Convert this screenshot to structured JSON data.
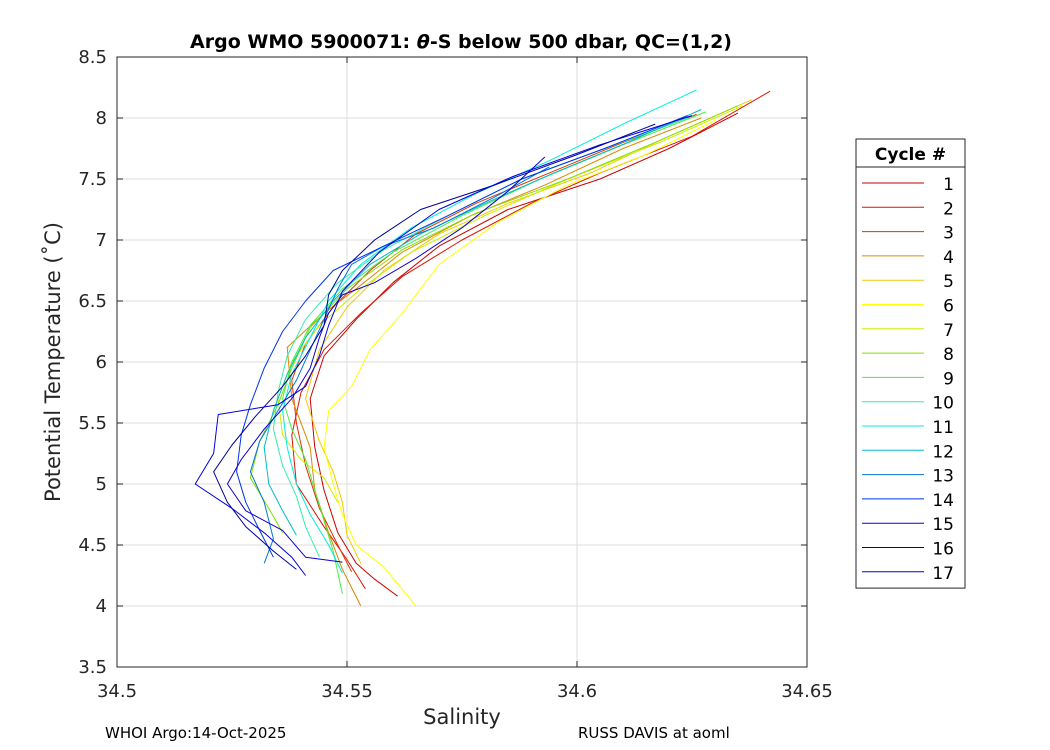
{
  "chart_data": {
    "type": "line",
    "title_parts": [
      "Argo WMO 5900071: ",
      "θ",
      "-S below 500 dbar,  QC=(1,2)"
    ],
    "xlabel": "Salinity",
    "ylabel": "Potential Temperature (˚C)",
    "xlim": [
      34.5,
      34.65
    ],
    "ylim": [
      3.5,
      8.5
    ],
    "xticks": [
      34.5,
      34.55,
      34.6,
      34.65
    ],
    "xtick_labels": [
      "34.5",
      "34.55",
      "34.6",
      "34.65"
    ],
    "yticks": [
      3.5,
      4,
      4.5,
      5,
      5.5,
      6,
      6.5,
      7,
      7.5,
      8,
      8.5
    ],
    "ytick_labels": [
      "3.5",
      "4",
      "4.5",
      "5",
      "5.5",
      "6",
      "6.5",
      "7",
      "7.5",
      "8",
      "8.5"
    ],
    "grid": true,
    "legend_title": "Cycle #",
    "legend_position": "right, outside plot",
    "series": [
      {
        "name": "1",
        "color": "#cc0000",
        "points": [
          [
            34.635,
            8.04
          ],
          [
            34.62,
            7.75
          ],
          [
            34.605,
            7.5
          ],
          [
            34.585,
            7.25
          ],
          [
            34.57,
            6.95
          ],
          [
            34.56,
            6.65
          ],
          [
            34.552,
            6.35
          ],
          [
            34.545,
            6.05
          ],
          [
            34.542,
            5.7
          ],
          [
            34.543,
            5.3
          ],
          [
            34.545,
            4.95
          ],
          [
            34.548,
            4.6
          ],
          [
            34.552,
            4.35
          ],
          [
            34.556,
            4.22
          ],
          [
            34.561,
            4.08
          ]
        ]
      },
      {
        "name": "2",
        "color": "#dd1100",
        "points": [
          [
            34.642,
            8.22
          ],
          [
            34.625,
            7.85
          ],
          [
            34.605,
            7.55
          ],
          [
            34.59,
            7.3
          ],
          [
            34.575,
            7.0
          ],
          [
            34.562,
            6.7
          ],
          [
            34.553,
            6.4
          ],
          [
            34.545,
            6.1
          ],
          [
            34.54,
            5.75
          ],
          [
            34.538,
            5.4
          ],
          [
            34.539,
            5.0
          ],
          [
            34.545,
            4.65
          ],
          [
            34.55,
            4.38
          ],
          [
            34.554,
            4.14
          ]
        ]
      },
      {
        "name": "3",
        "color": "#dd3300",
        "points": [
          [
            34.626,
            8.03
          ],
          [
            34.61,
            7.8
          ],
          [
            34.594,
            7.55
          ],
          [
            34.578,
            7.3
          ],
          [
            34.565,
            7.05
          ],
          [
            34.555,
            6.75
          ],
          [
            34.547,
            6.45
          ],
          [
            34.541,
            6.15
          ],
          [
            34.538,
            5.85
          ],
          [
            34.539,
            5.5
          ],
          [
            34.541,
            5.15
          ],
          [
            34.544,
            4.8
          ],
          [
            34.548,
            4.5
          ],
          [
            34.551,
            4.28
          ]
        ]
      },
      {
        "name": "4",
        "color": "#dd8800",
        "points": [
          [
            34.627,
            8.0
          ],
          [
            34.61,
            7.75
          ],
          [
            34.593,
            7.45
          ],
          [
            34.577,
            7.2
          ],
          [
            34.562,
            6.9
          ],
          [
            34.552,
            6.6
          ],
          [
            34.545,
            6.4
          ],
          [
            34.537,
            6.12
          ],
          [
            34.538,
            5.7
          ],
          [
            34.542,
            5.3
          ],
          [
            34.543,
            4.95
          ],
          [
            34.546,
            4.6
          ],
          [
            34.549,
            4.3
          ],
          [
            34.553,
            4.0
          ]
        ]
      },
      {
        "name": "5",
        "color": "#eecc00",
        "points": [
          [
            34.638,
            8.15
          ],
          [
            34.62,
            7.85
          ],
          [
            34.603,
            7.55
          ],
          [
            34.585,
            7.3
          ],
          [
            34.57,
            7.05
          ],
          [
            34.558,
            6.75
          ],
          [
            34.55,
            6.45
          ],
          [
            34.544,
            6.1
          ],
          [
            34.541,
            5.7
          ],
          [
            34.544,
            5.35
          ],
          [
            34.547,
            5.1
          ],
          [
            34.549,
            4.85
          ],
          [
            34.55,
            4.58
          ],
          [
            34.553,
            4.35
          ]
        ]
      },
      {
        "name": "6",
        "color": "#ffff00",
        "points": [
          [
            34.63,
            7.98
          ],
          [
            34.615,
            7.7
          ],
          [
            34.598,
            7.45
          ],
          [
            34.583,
            7.15
          ],
          [
            34.57,
            6.8
          ],
          [
            34.562,
            6.4
          ],
          [
            34.555,
            6.1
          ],
          [
            34.551,
            5.8
          ],
          [
            34.546,
            5.6
          ],
          [
            34.545,
            5.3
          ],
          [
            34.547,
            5.0
          ],
          [
            34.549,
            4.75
          ],
          [
            34.552,
            4.5
          ],
          [
            34.558,
            4.32
          ],
          [
            34.565,
            4.0
          ]
        ]
      },
      {
        "name": "7",
        "color": "#ccee00",
        "points": [
          [
            34.636,
            8.1
          ],
          [
            34.618,
            7.8
          ],
          [
            34.598,
            7.5
          ],
          [
            34.58,
            7.2
          ],
          [
            34.564,
            6.9
          ],
          [
            34.553,
            6.6
          ],
          [
            34.544,
            6.3
          ],
          [
            34.538,
            6.0
          ],
          [
            34.535,
            5.7
          ],
          [
            34.536,
            5.4
          ],
          [
            34.54,
            5.2
          ],
          [
            34.545,
            5.05
          ],
          [
            34.548,
            4.85
          ]
        ]
      },
      {
        "name": "8",
        "color": "#88dd00",
        "points": [
          [
            34.635,
            8.1
          ],
          [
            34.617,
            7.8
          ],
          [
            34.598,
            7.5
          ],
          [
            34.578,
            7.22
          ],
          [
            34.562,
            6.92
          ],
          [
            34.55,
            6.6
          ],
          [
            34.542,
            6.28
          ],
          [
            34.538,
            5.95
          ],
          [
            34.535,
            5.65
          ],
          [
            34.531,
            5.35
          ],
          [
            34.529,
            5.05
          ],
          [
            34.533,
            4.8
          ],
          [
            34.536,
            4.6
          ]
        ]
      },
      {
        "name": "9",
        "color": "#44ee44",
        "points": [
          [
            34.628,
            8.05
          ],
          [
            34.61,
            7.78
          ],
          [
            34.592,
            7.5
          ],
          [
            34.575,
            7.2
          ],
          [
            34.56,
            6.9
          ],
          [
            34.549,
            6.6
          ],
          [
            34.542,
            6.3
          ],
          [
            34.538,
            6.0
          ],
          [
            34.536,
            5.7
          ],
          [
            34.538,
            5.45
          ],
          [
            34.541,
            5.2
          ],
          [
            34.543,
            4.95
          ],
          [
            34.545,
            4.7
          ],
          [
            34.547,
            4.45
          ],
          [
            34.549,
            4.1
          ]
        ]
      },
      {
        "name": "10",
        "color": "#33eeaa",
        "points": [
          [
            34.624,
            8.0
          ],
          [
            34.606,
            7.75
          ],
          [
            34.588,
            7.5
          ],
          [
            34.572,
            7.2
          ],
          [
            34.558,
            6.92
          ],
          [
            34.548,
            6.65
          ],
          [
            34.541,
            6.35
          ],
          [
            34.537,
            6.05
          ],
          [
            34.535,
            5.75
          ],
          [
            34.534,
            5.45
          ],
          [
            34.536,
            5.15
          ],
          [
            34.539,
            4.9
          ],
          [
            34.541,
            4.65
          ],
          [
            34.544,
            4.4
          ]
        ]
      },
      {
        "name": "11",
        "color": "#00eedd",
        "points": [
          [
            34.626,
            8.23
          ],
          [
            34.61,
            7.95
          ],
          [
            34.594,
            7.65
          ],
          [
            34.578,
            7.38
          ],
          [
            34.564,
            7.1
          ],
          [
            34.553,
            6.8
          ],
          [
            34.546,
            6.5
          ],
          [
            34.542,
            6.2
          ],
          [
            34.538,
            5.9
          ],
          [
            34.536,
            5.6
          ],
          [
            34.537,
            5.3
          ],
          [
            34.539,
            5.0
          ],
          [
            34.542,
            4.75
          ],
          [
            34.546,
            4.5
          ],
          [
            34.549,
            4.27
          ]
        ]
      },
      {
        "name": "12",
        "color": "#00bbcc",
        "points": [
          [
            34.627,
            8.07
          ],
          [
            34.611,
            7.8
          ],
          [
            34.595,
            7.55
          ],
          [
            34.58,
            7.3
          ],
          [
            34.566,
            7.05
          ],
          [
            34.555,
            6.8
          ],
          [
            34.547,
            6.5
          ],
          [
            34.541,
            6.2
          ],
          [
            34.537,
            5.9
          ],
          [
            34.534,
            5.6
          ],
          [
            34.532,
            5.3
          ],
          [
            34.533,
            5.0
          ],
          [
            34.536,
            4.78
          ],
          [
            34.539,
            4.58
          ]
        ]
      },
      {
        "name": "13",
        "color": "#0077dd",
        "points": [
          [
            34.594,
            7.6
          ],
          [
            34.582,
            7.35
          ],
          [
            34.569,
            7.1
          ],
          [
            34.558,
            6.95
          ],
          [
            34.551,
            6.8
          ],
          [
            34.548,
            6.6
          ],
          [
            34.545,
            6.35
          ],
          [
            34.542,
            6.1
          ],
          [
            34.539,
            5.85
          ],
          [
            34.535,
            5.6
          ],
          [
            34.531,
            5.35
          ],
          [
            34.529,
            5.1
          ],
          [
            34.532,
            4.85
          ],
          [
            34.534,
            4.55
          ],
          [
            34.532,
            4.35
          ]
        ]
      },
      {
        "name": "14",
        "color": "#0033ee",
        "points": [
          [
            34.624,
            8.02
          ],
          [
            34.606,
            7.75
          ],
          [
            34.588,
            7.5
          ],
          [
            34.572,
            7.2
          ],
          [
            34.558,
            6.95
          ],
          [
            34.547,
            6.75
          ],
          [
            34.541,
            6.5
          ],
          [
            34.536,
            6.25
          ],
          [
            34.532,
            5.95
          ],
          [
            34.529,
            5.65
          ],
          [
            34.527,
            5.4
          ],
          [
            34.526,
            5.1
          ],
          [
            34.528,
            4.85
          ],
          [
            34.531,
            4.62
          ],
          [
            34.534,
            4.4
          ]
        ]
      },
      {
        "name": "15",
        "color": "#1100cc",
        "points": [
          [
            34.593,
            7.68
          ],
          [
            34.585,
            7.4
          ],
          [
            34.575,
            7.1
          ],
          [
            34.565,
            6.85
          ],
          [
            34.556,
            6.65
          ],
          [
            34.549,
            6.55
          ],
          [
            34.546,
            6.4
          ],
          [
            34.544,
            6.2
          ],
          [
            34.542,
            5.95
          ],
          [
            34.538,
            5.7
          ],
          [
            34.532,
            5.45
          ],
          [
            34.527,
            5.2
          ],
          [
            34.524,
            5.0
          ],
          [
            34.528,
            4.78
          ],
          [
            34.536,
            4.62
          ],
          [
            34.541,
            4.4
          ],
          [
            34.549,
            4.36
          ]
        ]
      },
      {
        "name": "16",
        "color": "#000099",
        "points": [
          [
            34.617,
            7.95
          ],
          [
            34.6,
            7.7
          ],
          [
            34.582,
            7.45
          ],
          [
            34.566,
            7.25
          ],
          [
            34.556,
            7.0
          ],
          [
            34.549,
            6.75
          ],
          [
            34.546,
            6.55
          ],
          [
            34.545,
            6.3
          ],
          [
            34.541,
            6.05
          ],
          [
            34.536,
            5.8
          ],
          [
            34.53,
            5.55
          ],
          [
            34.525,
            5.32
          ],
          [
            34.521,
            5.1
          ],
          [
            34.524,
            4.85
          ],
          [
            34.528,
            4.65
          ],
          [
            34.534,
            4.45
          ],
          [
            34.539,
            4.3
          ]
        ]
      },
      {
        "name": "17",
        "color": "#0000dd",
        "points": [
          [
            34.625,
            8.02
          ],
          [
            34.605,
            7.78
          ],
          [
            34.586,
            7.52
          ],
          [
            34.57,
            7.25
          ],
          [
            34.557,
            6.9
          ],
          [
            34.549,
            6.58
          ],
          [
            34.546,
            6.3
          ],
          [
            34.544,
            6.05
          ],
          [
            34.541,
            5.8
          ],
          [
            34.535,
            5.65
          ],
          [
            34.522,
            5.57
          ],
          [
            34.521,
            5.25
          ],
          [
            34.517,
            5.0
          ],
          [
            34.525,
            4.8
          ],
          [
            34.532,
            4.6
          ],
          [
            34.538,
            4.4
          ],
          [
            34.541,
            4.25
          ]
        ]
      }
    ]
  },
  "footer": {
    "left": "WHOI Argo:14-Oct-2025",
    "right": "RUSS DAVIS at aoml"
  }
}
